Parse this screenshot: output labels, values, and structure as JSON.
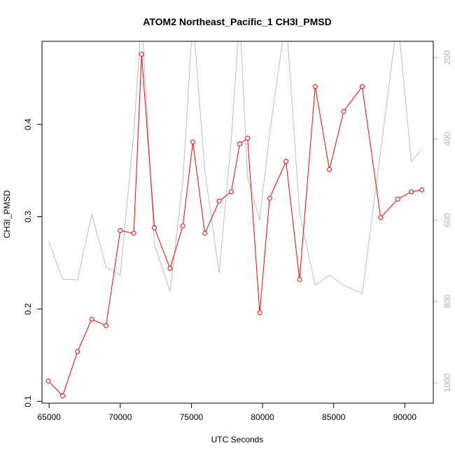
{
  "chart_data": {
    "type": "line",
    "title": "ATOM2 Northeast_Pacific_1 CH3I_PMSD",
    "xlabel": "UTC Seconds",
    "ylabel": "CH3I_PMSD",
    "xlim": [
      64500,
      92000
    ],
    "ylim": [
      0.098,
      0.49
    ],
    "y2lim": [
      1050,
      160
    ],
    "x_ticks": [
      65000,
      70000,
      75000,
      80000,
      85000,
      90000
    ],
    "y_ticks": [
      0.1,
      0.2,
      0.3,
      0.4
    ],
    "y2_ticks": [
      200,
      400,
      600,
      800,
      1000
    ],
    "grid": false,
    "colors": {
      "primary": "#ff0000",
      "secondary": "#bebebe",
      "axis": "#000000",
      "secondary_axis": "#b4b4b4"
    },
    "series": [
      {
        "axis": "left",
        "marker": "open-circle",
        "x": [
          64950,
          65950,
          67000,
          68000,
          69000,
          70000,
          70950,
          71500,
          72400,
          73500,
          74400,
          75100,
          75950,
          76950,
          77800,
          78400,
          78950,
          79800,
          80500,
          81650,
          82600,
          83700,
          84700,
          85700,
          87000,
          88300,
          89500,
          90450,
          91200
        ],
        "values": [
          0.122,
          0.106,
          0.154,
          0.189,
          0.182,
          0.285,
          0.282,
          0.476,
          0.288,
          0.244,
          0.29,
          0.381,
          0.282,
          0.317,
          0.327,
          0.379,
          0.385,
          0.196,
          0.32,
          0.36,
          0.232,
          0.441,
          0.351,
          0.414,
          0.441,
          0.299,
          0.319,
          0.327,
          0.329
        ]
      },
      {
        "axis": "right",
        "x": [
          64950,
          65950,
          67000,
          68000,
          69000,
          70000,
          70950,
          71500,
          72400,
          73500,
          74400,
          75100,
          75950,
          76950,
          77800,
          78400,
          78950,
          79800,
          80500,
          81650,
          82600,
          83700,
          84700,
          85700,
          87000,
          88300,
          89500,
          90450,
          91200
        ],
        "values": [
          650,
          745,
          747,
          585,
          715,
          735,
          385,
          100,
          660,
          775,
          505,
          100,
          480,
          730,
          400,
          100,
          495,
          600,
          385,
          100,
          580,
          760,
          735,
          760,
          780,
          430,
          100,
          455,
          425
        ]
      }
    ]
  }
}
